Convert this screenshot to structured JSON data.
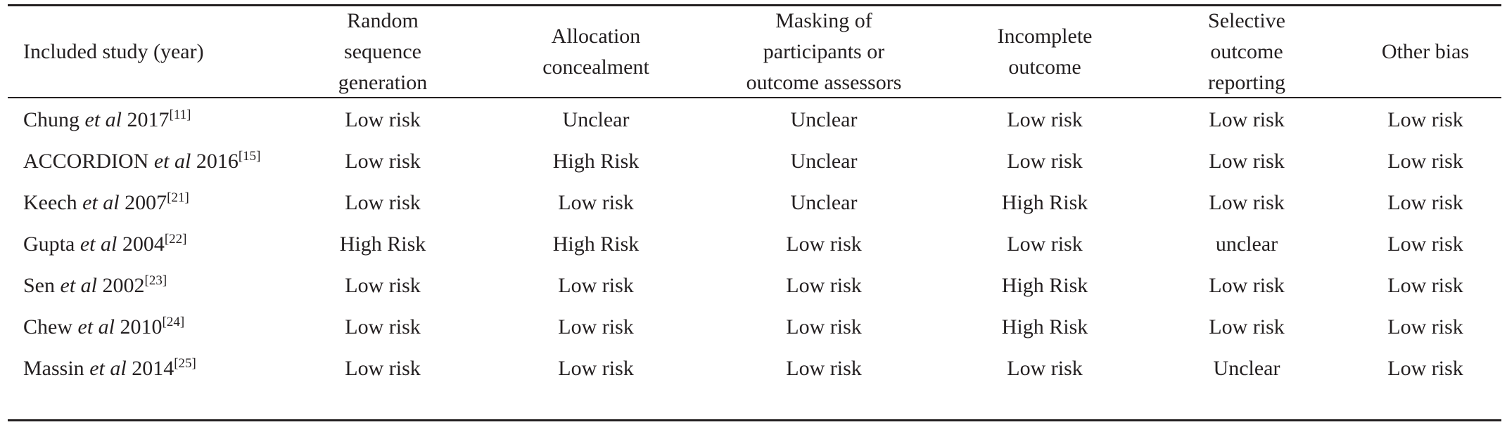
{
  "table": {
    "columns": [
      [
        "Included study (year)"
      ],
      [
        "Random",
        "sequence",
        "generation"
      ],
      [
        "Allocation",
        "concealment"
      ],
      [
        "Masking of",
        "participants or",
        "outcome assessors"
      ],
      [
        "Incomplete",
        "outcome"
      ],
      [
        "Selective",
        "outcome",
        "reporting"
      ],
      [
        "Other bias"
      ]
    ],
    "rows": [
      {
        "author": "Chung",
        "etal": "et al",
        "year": "2017",
        "ref": "[11]",
        "ratings": [
          "Low risk",
          "Unclear",
          "Unclear",
          "Low risk",
          "Low risk",
          "Low risk"
        ]
      },
      {
        "author": "ACCORDION",
        "etal": "et al",
        "year": "2016",
        "ref": "[15]",
        "ratings": [
          "Low risk",
          "High Risk",
          "Unclear",
          "Low risk",
          "Low risk",
          "Low risk"
        ]
      },
      {
        "author": "Keech",
        "etal": "et al",
        "year": "2007",
        "ref": "[21]",
        "ratings": [
          "Low risk",
          "Low risk",
          "Unclear",
          "High Risk",
          "Low risk",
          "Low risk"
        ]
      },
      {
        "author": "Gupta",
        "etal": "et al",
        "year": "2004",
        "ref": "[22]",
        "ratings": [
          "High Risk",
          "High Risk",
          "Low risk",
          "Low risk",
          "unclear",
          "Low risk"
        ]
      },
      {
        "author": "Sen",
        "etal": "et al",
        "year": "2002",
        "ref": "[23]",
        "ratings": [
          "Low risk",
          "Low risk",
          "Low risk",
          "High Risk",
          "Low risk",
          "Low risk"
        ]
      },
      {
        "author": "Chew",
        "etal": "et al",
        "year": "2010",
        "ref": "[24]",
        "ratings": [
          "Low risk",
          "Low risk",
          "Low risk",
          "High Risk",
          "Low risk",
          "Low risk"
        ]
      },
      {
        "author": "Massin",
        "etal": "et al",
        "year": "2014",
        "ref": "[25]",
        "ratings": [
          "Low risk",
          "Low risk",
          "Low risk",
          "Low risk",
          "Unclear",
          "Low risk"
        ]
      }
    ]
  }
}
